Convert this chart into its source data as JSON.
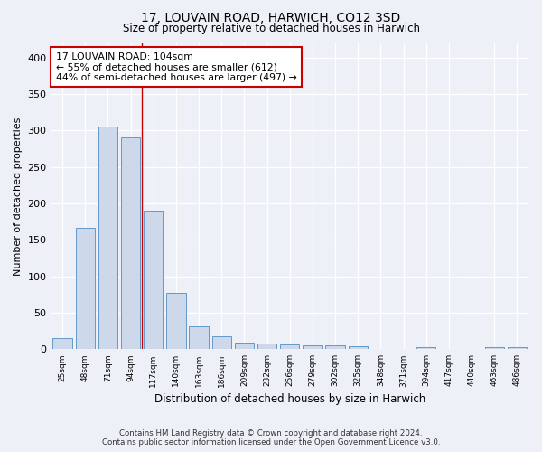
{
  "title1": "17, LOUVAIN ROAD, HARWICH, CO12 3SD",
  "title2": "Size of property relative to detached houses in Harwich",
  "xlabel": "Distribution of detached houses by size in Harwich",
  "ylabel": "Number of detached properties",
  "categories": [
    "25sqm",
    "48sqm",
    "71sqm",
    "94sqm",
    "117sqm",
    "140sqm",
    "163sqm",
    "186sqm",
    "209sqm",
    "232sqm",
    "256sqm",
    "279sqm",
    "302sqm",
    "325sqm",
    "348sqm",
    "371sqm",
    "394sqm",
    "417sqm",
    "440sqm",
    "463sqm",
    "486sqm"
  ],
  "values": [
    15,
    167,
    305,
    290,
    190,
    77,
    32,
    18,
    9,
    8,
    6,
    5,
    5,
    4,
    0,
    0,
    3,
    0,
    0,
    3,
    3
  ],
  "bar_color": "#cdd9ea",
  "bar_edge_color": "#6399c8",
  "red_line_x": 3.5,
  "annotation_text": "17 LOUVAIN ROAD: 104sqm\n← 55% of detached houses are smaller (612)\n44% of semi-detached houses are larger (497) →",
  "annotation_box_color": "#ffffff",
  "annotation_box_edge": "#cc0000",
  "footer1": "Contains HM Land Registry data © Crown copyright and database right 2024.",
  "footer2": "Contains public sector information licensed under the Open Government Licence v3.0.",
  "bg_color": "#edf1f7",
  "plot_bg_color": "#edf1f7",
  "grid_color": "#ffffff",
  "ylim": [
    0,
    420
  ],
  "yticks": [
    0,
    50,
    100,
    150,
    200,
    250,
    300,
    350,
    400
  ]
}
